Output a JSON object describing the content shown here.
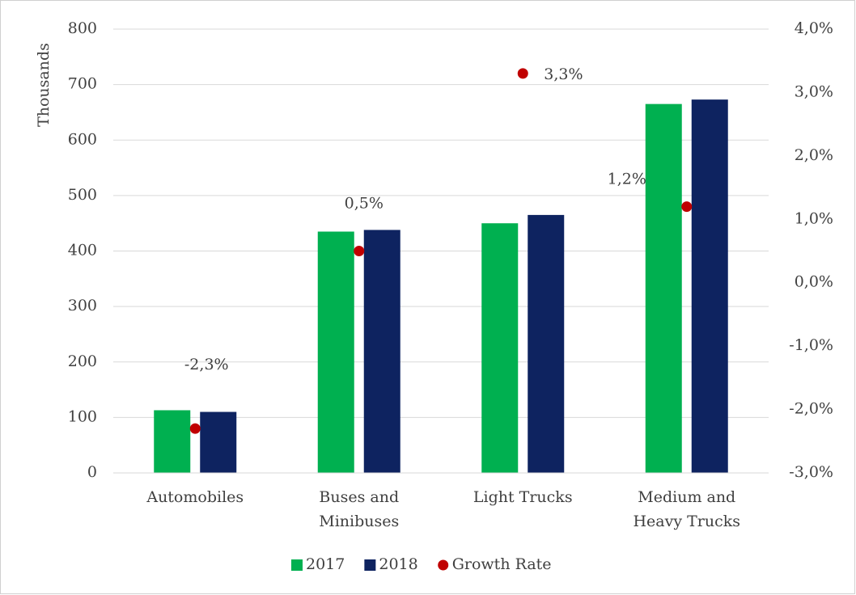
{
  "chart_data": {
    "type": "bar",
    "y_label": "Thousands",
    "categories": [
      "Automobiles",
      "Buses and Minibuses",
      "Light  Trucks",
      "Medium and Heavy  Trucks"
    ],
    "series": [
      {
        "name": "2017",
        "color": "#00b050",
        "values": [
          113,
          435,
          450,
          665
        ]
      },
      {
        "name": "2018",
        "color": "#0e2360",
        "values": [
          110,
          438,
          465,
          673
        ]
      },
      {
        "name": "Growth Rate",
        "color": "#c00000",
        "type": "scatter",
        "axis": "y2",
        "values": [
          -2.3,
          0.5,
          3.3,
          1.2
        ],
        "value_labels": [
          "-2,3%",
          "0,5%",
          "3,3%",
          "1,2%"
        ]
      }
    ],
    "ylim": [
      0,
      800
    ],
    "yticks": [
      0,
      100,
      200,
      300,
      400,
      500,
      600,
      700,
      800
    ],
    "y2lim": [
      -3.0,
      4.0
    ],
    "y2ticks": [
      {
        "value": -3.0,
        "label": "-3,0%"
      },
      {
        "value": -2.0,
        "label": "-2,0%"
      },
      {
        "value": -1.0,
        "label": "-1,0%"
      },
      {
        "value": 0.0,
        "label": "0,0%"
      },
      {
        "value": 1.0,
        "label": "1,0%"
      },
      {
        "value": 2.0,
        "label": "2,0%"
      },
      {
        "value": 3.0,
        "label": "3,0%"
      },
      {
        "value": 4.0,
        "label": "4,0%"
      }
    ],
    "grid": true,
    "legend": "bottom"
  }
}
